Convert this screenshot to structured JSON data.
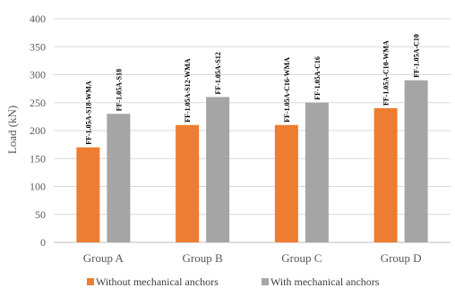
{
  "chart_data": {
    "type": "bar",
    "ylabel": "Load (kN)",
    "xlabel": "",
    "title": "",
    "ylim": [
      0,
      400
    ],
    "yticks": [
      0,
      50,
      100,
      150,
      200,
      250,
      300,
      350,
      400
    ],
    "grid": true,
    "legend_position": "bottom",
    "categories": [
      "Group A",
      "Group B",
      "Group C",
      "Group D"
    ],
    "series": [
      {
        "name": "Without mechanical anchors",
        "color": "#ED7D31",
        "values": [
          170,
          210,
          210,
          240
        ],
        "labels": [
          "FF-1.05A-S18-WMA",
          "FF-1.05A-S12-WMA",
          "FF-1.05A-C16-WMA",
          "FF-1.05A-C10-WMA"
        ]
      },
      {
        "name": "With mechanical anchors",
        "color": "#A5A5A5",
        "values": [
          230,
          260,
          250,
          290
        ],
        "labels": [
          "FF-1.05A-S18",
          "FF-1.05A-S12",
          "FF-1.05A-C16",
          "FF-1.05A-C10"
        ]
      }
    ]
  }
}
